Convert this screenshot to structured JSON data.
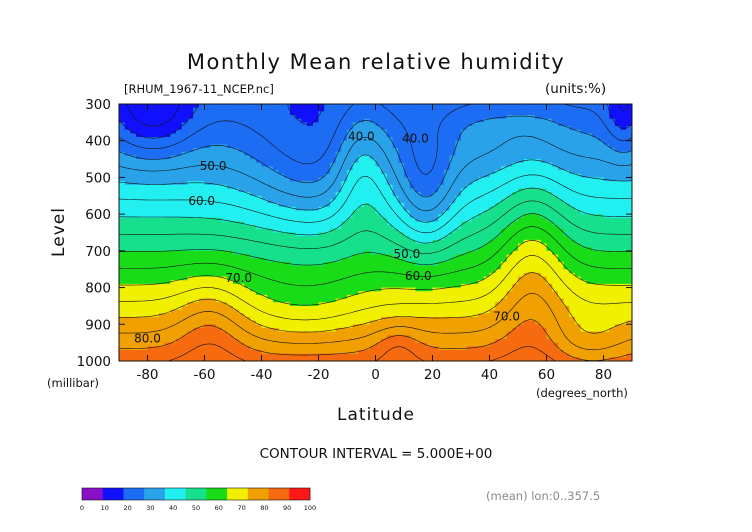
{
  "chart_data": {
    "type": "contour",
    "title": "Monthly Mean relative humidity",
    "subtitle": "[RHUM_1967-11_NCEP.nc]",
    "units_label": "(units:%)",
    "xlabel": "Latitude",
    "xunit": "(degrees_north)",
    "ylabel": "Level",
    "yunit": "(millibar)",
    "xlim": [
      -90,
      90
    ],
    "ylim": [
      1000,
      300
    ],
    "x_ticks": [
      "-80",
      "-60",
      "-40",
      "-20",
      "0",
      "20",
      "40",
      "60",
      "80"
    ],
    "x_tick_values": [
      -80,
      -60,
      -40,
      -20,
      0,
      20,
      40,
      60,
      80
    ],
    "y_ticks": [
      "300",
      "400",
      "500",
      "600",
      "700",
      "800",
      "900",
      "1000"
    ],
    "y_tick_values": [
      300,
      400,
      500,
      600,
      700,
      800,
      900,
      1000
    ],
    "contour_interval_text": "CONTOUR INTERVAL = 5.000E+00",
    "footer_text": "(mean) lon:0..357.5",
    "colorbar_ticks": [
      "0",
      "10",
      "20",
      "30",
      "40",
      "50",
      "60",
      "70",
      "80",
      "90",
      "100"
    ],
    "colorbar_colors": [
      "#8a10c8",
      "#1010ff",
      "#1c6cf4",
      "#2aa2ea",
      "#22f0f0",
      "#16e08c",
      "#18dc18",
      "#f0f000",
      "#f0a000",
      "#f66a10",
      "#ff1818"
    ],
    "contour_labels": [
      {
        "text": "40.0",
        "lat": -5,
        "lev": 400
      },
      {
        "text": "40.0",
        "lat": 14,
        "lev": 405
      },
      {
        "text": "50.0",
        "lat": -57,
        "lev": 480
      },
      {
        "text": "60.0",
        "lat": -61,
        "lev": 575
      },
      {
        "text": "50.0",
        "lat": 11,
        "lev": 720
      },
      {
        "text": "60.0",
        "lat": 15,
        "lev": 780
      },
      {
        "text": "70.0",
        "lat": -48,
        "lev": 785
      },
      {
        "text": "70.0",
        "lat": 46,
        "lev": 890
      },
      {
        "text": "80.0",
        "lat": -80,
        "lev": 950
      }
    ]
  }
}
